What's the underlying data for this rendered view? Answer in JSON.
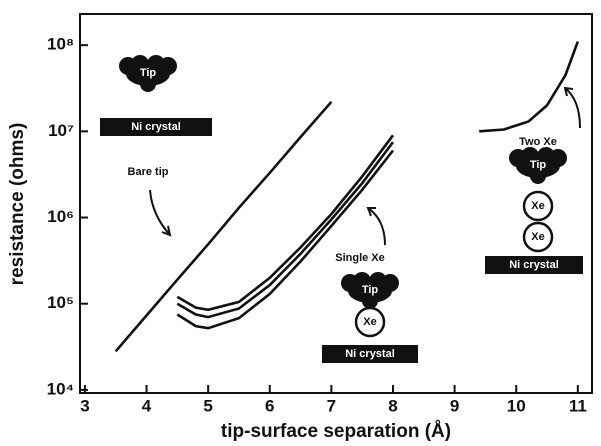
{
  "chart_data": {
    "type": "line",
    "xlabel": "tip-surface separation (Å)",
    "ylabel": "resistance (ohms)",
    "xlim": [
      2.92,
      11.23
    ],
    "ylim": [
      9200,
      230000000
    ],
    "ylog": true,
    "xticks": [
      3,
      4,
      5,
      6,
      7,
      8,
      9,
      10,
      11
    ],
    "yticks": [
      {
        "value": 10000,
        "label": "10⁴"
      },
      {
        "value": 100000,
        "label": "10⁵"
      },
      {
        "value": 1000000,
        "label": "10⁶"
      },
      {
        "value": 10000000,
        "label": "10⁷"
      },
      {
        "value": 100000000,
        "label": "10⁸"
      }
    ],
    "series": [
      {
        "name": "Bare tip",
        "color": "#111111",
        "x": [
          3.5,
          4,
          4.5,
          5,
          5.5,
          6,
          6.5,
          7
        ],
        "values": [
          28000,
          73000,
          190000,
          490000,
          1300000,
          3300000,
          8600000,
          22000000
        ]
      },
      {
        "name": "Single Xe",
        "color": "#111111",
        "x": [
          4.5,
          4.8,
          5,
          5.5,
          6,
          6.5,
          7,
          7.5,
          8
        ],
        "values": [
          120000,
          90000,
          85000,
          105000,
          200000,
          450000,
          1100000,
          3000000,
          9000000
        ]
      },
      {
        "color": "#111111",
        "x": [
          4.5,
          4.8,
          5,
          5.5,
          6,
          6.5,
          7,
          7.5,
          8
        ],
        "values": [
          100000,
          75000,
          70000,
          88000,
          165000,
          380000,
          950000,
          2500000,
          7500000
        ]
      },
      {
        "color": "#111111",
        "x": [
          4.5,
          4.8,
          5,
          5.5,
          6,
          6.5,
          7,
          7.5,
          8
        ],
        "values": [
          75000,
          55000,
          52000,
          68000,
          130000,
          310000,
          800000,
          2100000,
          6000000
        ]
      },
      {
        "name": "Two Xe",
        "color": "#111111",
        "x": [
          9.4,
          9.8,
          10.2,
          10.5,
          10.8,
          11
        ],
        "values": [
          10000000,
          10500000,
          13000000,
          20000000,
          45000000,
          110000000
        ]
      }
    ],
    "annotations": [
      "Tip",
      "Ni crystal",
      "Tip",
      "Xe",
      "Ni crystal",
      "Tip",
      "Xe",
      "Xe",
      "Ni crystal"
    ]
  }
}
